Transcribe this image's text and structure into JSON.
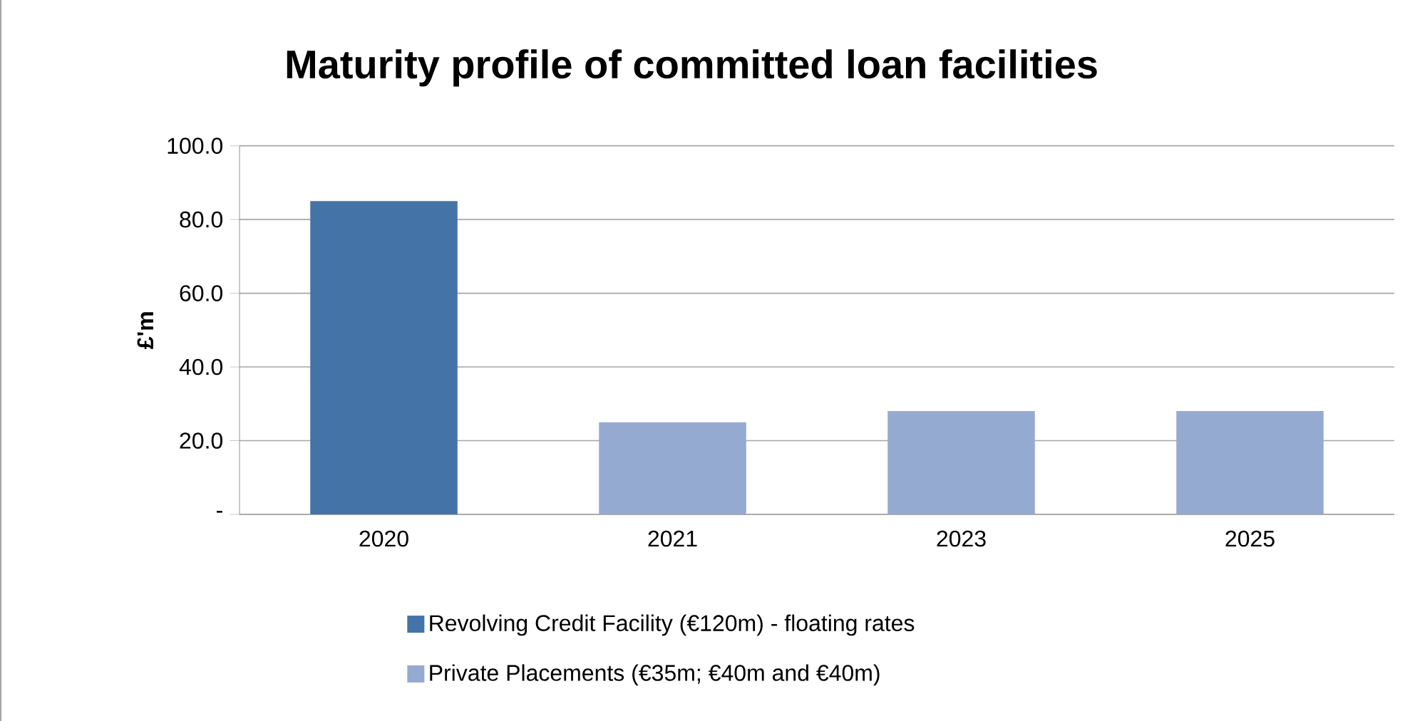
{
  "chart_data": {
    "type": "bar",
    "title": "Maturity profile of committed loan facilities",
    "ylabel": "£'m",
    "categories": [
      "2020",
      "2021",
      "2023",
      "2025"
    ],
    "series": [
      {
        "name": "Revolving Credit Facility (€120m) - floating rates",
        "color": "#4473a7",
        "values": [
          85,
          null,
          null,
          null
        ]
      },
      {
        "name": "Private  Placements (€35m; €40m and €40m)",
        "color": "#95aad1",
        "values": [
          null,
          25,
          28,
          28
        ]
      }
    ],
    "ylim": [
      0,
      100
    ],
    "yticks": [
      {
        "value": 0,
        "label": "-"
      },
      {
        "value": 20,
        "label": "20.0"
      },
      {
        "value": 40,
        "label": "40.0"
      },
      {
        "value": 60,
        "label": "60.0"
      },
      {
        "value": 80,
        "label": "80.0"
      },
      {
        "value": 100,
        "label": "100.0"
      }
    ],
    "grid": "y",
    "legend": "bottom"
  }
}
